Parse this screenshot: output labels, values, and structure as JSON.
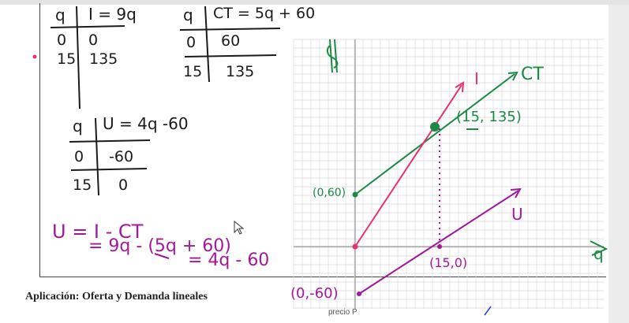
{
  "caption": "Aplicación: Oferta y Demanda lineales",
  "footer_label": "precio P",
  "tables": {
    "income": {
      "col1": "q",
      "col2": "I = 9q",
      "rows": [
        [
          "0",
          "0"
        ],
        [
          "15",
          "135"
        ]
      ]
    },
    "cost": {
      "col1": "q",
      "col2": "CT = 5q + 60",
      "rows": [
        [
          "0",
          "60"
        ],
        [
          "15",
          "135"
        ]
      ]
    },
    "utility": {
      "col1": "q",
      "col2": "U = 4q -60",
      "rows": [
        [
          "0",
          "-60"
        ],
        [
          "15",
          "0"
        ]
      ]
    }
  },
  "derivation": {
    "line1": "U = I - CT",
    "line2": "= 9q - (5q + 60)",
    "line3": "= 4q - 60"
  },
  "graph": {
    "y_axis_label": "$",
    "x_axis_label": "q",
    "labels": {
      "income": "I",
      "cost": "CT",
      "utility": "U",
      "intersection": "(15, 135)",
      "cost_intercept": "(0,60)",
      "utility_intercept": "(0,-60)",
      "break_even": "(15,0)"
    }
  },
  "colors": {
    "income": "#e8326e",
    "cost": "#1c8a44",
    "utility": "#a3189b",
    "grid": "#d9d9d9"
  }
}
